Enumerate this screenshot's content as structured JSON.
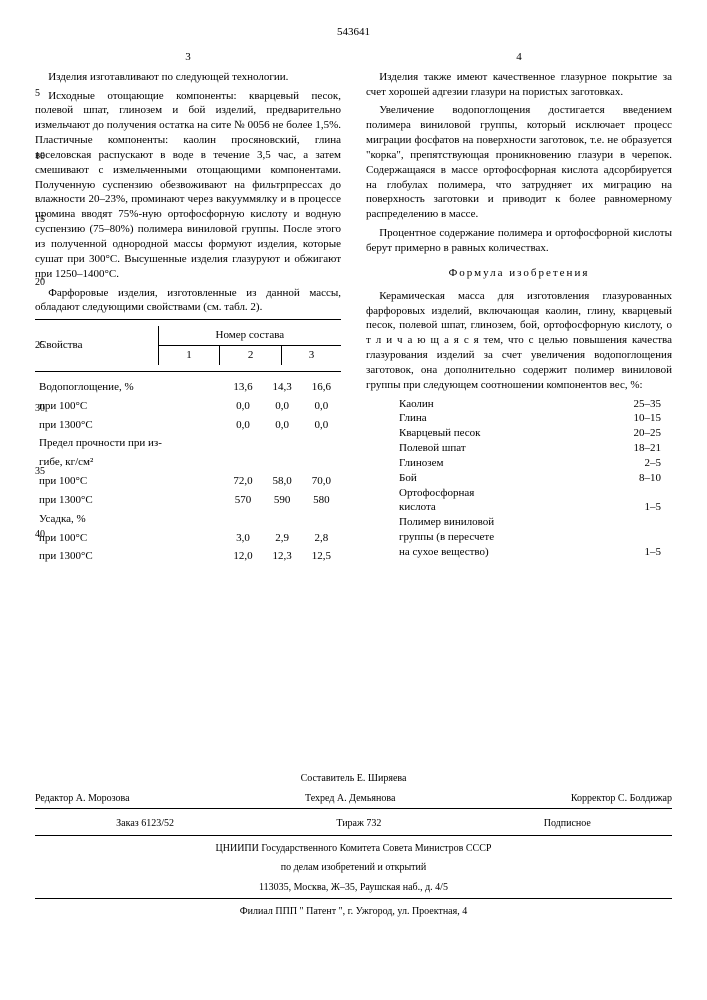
{
  "patentNumber": "543641",
  "leftColNum": "3",
  "rightColNum": "4",
  "left": {
    "p1": "Изделия изготавливают по следующей технологии.",
    "p2": "Исходные отощающие компоненты: кварцевый песок, полевой шпат, глинозем и бой изделий, предварительно измельчают до получения остатка на сите № 0056 не более 1,5%. Пластичные компоненты: каолин просяновский, глина веселовская распускают в воде в течение 3,5 час, а затем смешивают с измельченными отощающими компонентами. Полученную суспензию обезвоживают на фильтрпрессах до влажности 20–23%, проминают через вакууммялку и в процессе промина вводят 75%-ную ортофосфорную кислоту и водную суспензию (75–80%) полимера виниловой группы. После этого из полученной однородной массы формуют изделия, которые сушат при 300°С. Высушенные изделия глазуруют и обжигают при 1250–1400°С.",
    "p3": "Фарфоровые изделия, изготовленные из данной массы, обладают следующими свойствами (см. табл. 2).",
    "tableHeader1": "Свойства",
    "tableHeader2": "Номер состава",
    "th1": "1",
    "th2": "2",
    "th3": "3",
    "rows": [
      {
        "lab": "Водопоглощение, %",
        "v1": "13,6",
        "v2": "14,3",
        "v3": "16,6"
      },
      {
        "lab": "при 100°С",
        "v1": "0,0",
        "v2": "0,0",
        "v3": "0,0"
      },
      {
        "lab": "при 1300°С",
        "v1": "0,0",
        "v2": "0,0",
        "v3": "0,0"
      },
      {
        "lab": "Предел прочности при из-",
        "v1": "",
        "v2": "",
        "v3": ""
      },
      {
        "lab": "гибе, кг/см²",
        "v1": "",
        "v2": "",
        "v3": ""
      },
      {
        "lab": "при 100°С",
        "v1": "72,0",
        "v2": "58,0",
        "v3": "70,0"
      },
      {
        "lab": "при 1300°С",
        "v1": "570",
        "v2": "590",
        "v3": "580"
      },
      {
        "lab": "Усадка, %",
        "v1": "",
        "v2": "",
        "v3": ""
      },
      {
        "lab": "при 100°С",
        "v1": "3,0",
        "v2": "2,9",
        "v3": "2,8"
      },
      {
        "lab": "при 1300°С",
        "v1": "12,0",
        "v2": "12,3",
        "v3": "12,5"
      }
    ]
  },
  "right": {
    "p1": "Изделия также имеют качественное глазурное покрытие за счет хорошей адгезии глазури на пористых заготовках.",
    "p2": "Увеличение водопоглощения достигается введением полимера виниловой группы, который исключает процесс миграции фосфатов на поверхности заготовок, т.е. не образуется \"корка\", препятствующая проникновению глазури в черепок. Содержащаяся в массе ортофосфорная кислота адсорбируется на глобулах полимера, что затрудняет их миграцию на поверхность заготовки и приводит к более равномерному распределению в массе.",
    "p3": "Процентное содержание полимера и ортофосфорной кислоты берут примерно в равных количествах.",
    "formulaTitle": "Формула изобретения",
    "claim": "Керамическая масса для изготовления глазурованных фарфоровых изделий, включающая каолин, глину, кварцевый песок, полевой шпат, глинозем, бой, ортофосфорную кислоту, о т л и ч а ю щ а я с я тем, что с целью повышения качества глазурования изделий за счет увеличения водопоглощения заготовок, она дополнительно содержит полимер виниловой группы при следующем соотношении компонентов вес, %:",
    "comps": [
      {
        "n": "Каолин",
        "v": "25–35"
      },
      {
        "n": "Глина",
        "v": "10–15"
      },
      {
        "n": "Кварцевый песок",
        "v": "20–25"
      },
      {
        "n": "Полевой шпат",
        "v": "18–21"
      },
      {
        "n": "Глинозем",
        "v": "2–5"
      },
      {
        "n": "Бой",
        "v": "8–10"
      },
      {
        "n": "Ортофосфорная",
        "v": ""
      },
      {
        "n": "кислота",
        "v": "1–5"
      },
      {
        "n": "Полимер виниловой",
        "v": ""
      },
      {
        "n": "группы (в пересчете",
        "v": ""
      },
      {
        "n": "на сухое вещество)",
        "v": "1–5"
      }
    ]
  },
  "sideNums": [
    "5",
    "10",
    "15",
    "20",
    "25",
    "30",
    "35",
    "40"
  ],
  "footer": {
    "sost": "Составитель Е. Ширяева",
    "red": "Редактор А. Морозова",
    "teh": "Техред   А. Демьянова",
    "kor": "Корректор  С. Болдижар",
    "zakaz": "Заказ 6123/52",
    "tirazh": "Тираж   732",
    "podp": "Подписное",
    "org": "ЦНИИПИ Государственного Комитета Совета Министров СССР",
    "org2": "по делам изобретений и открытий",
    "addr": "113035, Москва, Ж–35, Раушская наб., д. 4/5",
    "filial": "Филиал ППП \" Патент \", г. Ужгород, ул. Проектная, 4"
  }
}
